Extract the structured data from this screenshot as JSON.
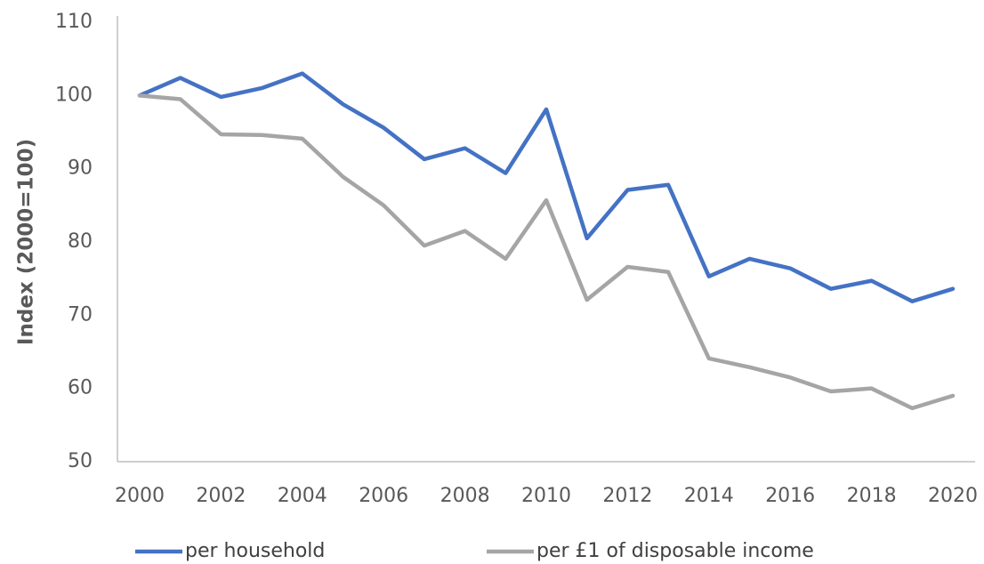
{
  "chart_data": {
    "type": "line",
    "y_label": "Index (2000=100)",
    "x": [
      2000,
      2001,
      2002,
      2003,
      2004,
      2005,
      2006,
      2007,
      2008,
      2009,
      2010,
      2011,
      2012,
      2013,
      2014,
      2015,
      2016,
      2017,
      2018,
      2019,
      2020
    ],
    "series": [
      {
        "name": "per household",
        "color": "#4472c4",
        "values": [
          100,
          102.4,
          99.8,
          101.0,
          103.0,
          98.8,
          95.6,
          91.3,
          92.8,
          89.4,
          98.1,
          80.5,
          87.1,
          87.8,
          75.3,
          77.7,
          76.4,
          73.6,
          74.7,
          71.9,
          73.6
        ]
      },
      {
        "name": "per £1 of disposable income",
        "color": "#a5a5a5",
        "values": [
          100,
          99.5,
          94.7,
          94.6,
          94.1,
          88.9,
          85.0,
          79.5,
          81.5,
          77.7,
          85.7,
          72.1,
          76.6,
          75.9,
          64.1,
          62.9,
          61.5,
          59.6,
          60.0,
          57.3,
          59.0
        ]
      }
    ],
    "xlim": [
      2000,
      2020
    ],
    "xticks": [
      2000,
      2002,
      2004,
      2006,
      2008,
      2010,
      2012,
      2014,
      2016,
      2018,
      2020
    ],
    "ylim": [
      50,
      110
    ],
    "yticks": [
      50,
      60,
      70,
      80,
      90,
      100,
      110
    ],
    "grid": false,
    "legend": "bottom"
  }
}
